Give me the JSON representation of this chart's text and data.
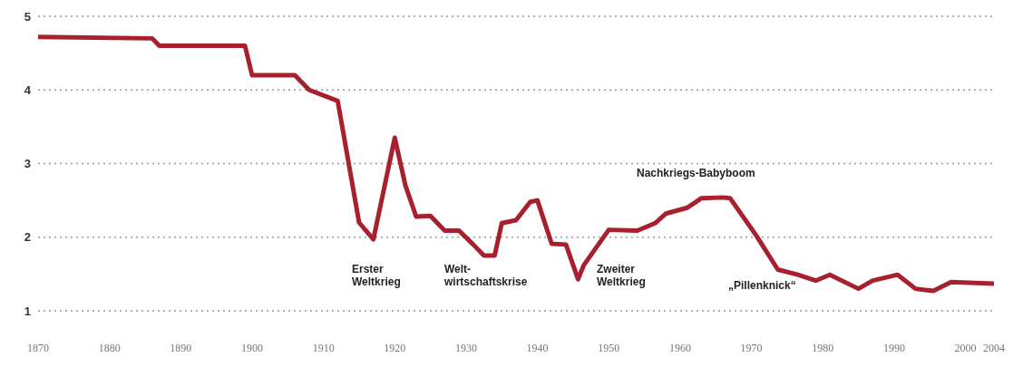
{
  "chart_data": {
    "type": "line",
    "x": [
      1870,
      1886,
      1887,
      1899,
      1900,
      1906,
      1908,
      1912,
      1915,
      1917,
      1920,
      1921.5,
      1923,
      1925,
      1927,
      1929,
      1931,
      1932.5,
      1934,
      1935,
      1937,
      1939,
      1940,
      1942,
      1944,
      1945.7,
      1946.5,
      1950,
      1954,
      1956.5,
      1958,
      1961,
      1963,
      1966,
      1967,
      1970.7,
      1973.7,
      1976.5,
      1979,
      1981,
      1985,
      1987,
      1990.5,
      1993,
      1995.5,
      1998,
      2004
    ],
    "series": [
      {
        "color": "#a8202e",
        "values": [
          4.72,
          4.7,
          4.6,
          4.6,
          4.2,
          4.2,
          4.0,
          3.85,
          2.2,
          1.97,
          3.35,
          2.7,
          2.28,
          2.29,
          2.09,
          2.09,
          1.9,
          1.75,
          1.75,
          2.19,
          2.23,
          2.48,
          2.5,
          1.91,
          1.9,
          1.43,
          1.62,
          2.1,
          2.09,
          2.19,
          2.32,
          2.4,
          2.53,
          2.54,
          2.53,
          2.02,
          1.56,
          1.49,
          1.41,
          1.49,
          1.3,
          1.41,
          1.49,
          1.3,
          1.27,
          1.39,
          1.37
        ]
      }
    ],
    "xlim": [
      1870,
      2004
    ],
    "xticks": [
      1870,
      1880,
      1890,
      1900,
      1910,
      1920,
      1930,
      1940,
      1950,
      1960,
      1970,
      1980,
      1990,
      2000,
      2004
    ],
    "ylim": [
      1,
      5
    ],
    "yticks": [
      1,
      2,
      3,
      4,
      5
    ],
    "grid": "y",
    "legend": false,
    "marker": "none",
    "line_style": "solid",
    "annotations": [
      "Erster\nWeltkrieg",
      "Welt-\nwirtschaftskrise",
      "Zweiter\nWeltkrieg",
      "Nachkriegs-Babyboom",
      "„Pillenknick“"
    ]
  }
}
